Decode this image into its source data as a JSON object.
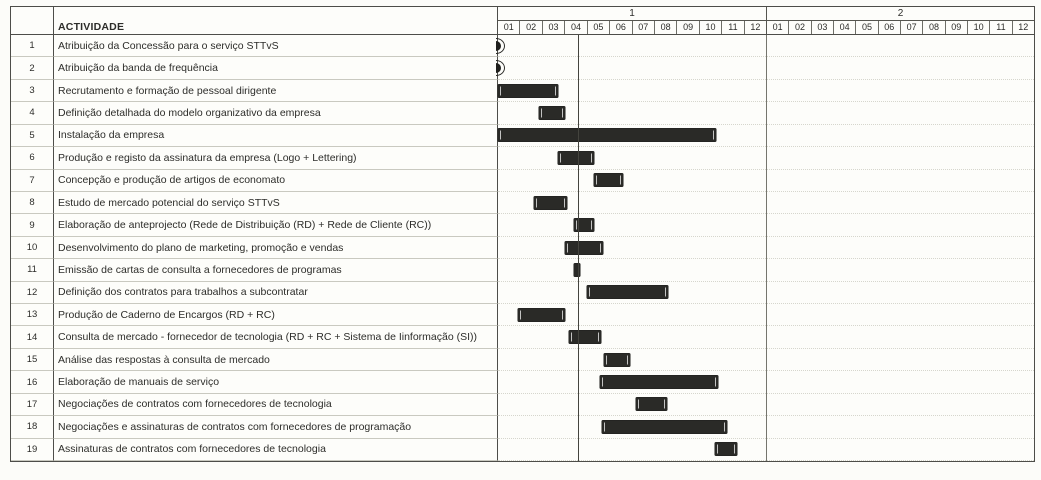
{
  "header": {
    "activity_label": "ACTIVIDADE"
  },
  "colors": {
    "bar": "#2a2a27",
    "border": "#4d4d49",
    "current_date_line": "#44443e"
  },
  "chart_data": {
    "type": "bar",
    "subtype": "gantt",
    "title": "",
    "x_axis": {
      "years": [
        "1",
        "2"
      ],
      "months": [
        "01",
        "02",
        "03",
        "04",
        "05",
        "06",
        "07",
        "08",
        "09",
        "10",
        "11",
        "12"
      ],
      "unit": "month",
      "range_months": [
        0,
        24
      ]
    },
    "current_date_line_month": 3.6,
    "tasks": [
      {
        "id": "1",
        "label": "Atribuição da Concessão para o serviço STTvS",
        "milestone_at": 0
      },
      {
        "id": "2",
        "label": "Atribuição da banda de frequência",
        "milestone_at": 0
      },
      {
        "id": "3",
        "label": "Recrutamento e formação de pessoal dirigente",
        "start": 0,
        "end": 2.7
      },
      {
        "id": "4",
        "label": "Definição detalhada do modelo organizativo da empresa",
        "start": 1.85,
        "end": 3.0
      },
      {
        "id": "5",
        "label": "Instalação da empresa",
        "start": 0,
        "end": 9.75
      },
      {
        "id": "6",
        "label": "Produção e registo da assinatura da empresa (Logo + Lettering)",
        "start": 2.7,
        "end": 4.3
      },
      {
        "id": "7",
        "label": "Concepção e produção de artigos de economato",
        "start": 4.3,
        "end": 5.6
      },
      {
        "id": "8",
        "label": "Estudo de mercado potencial do serviço STTvS",
        "start": 1.6,
        "end": 3.1
      },
      {
        "id": "9",
        "label": "Elaboração de anteprojecto (Rede de Distribuição (RD) + Rede de Cliente (RC))",
        "start": 3.4,
        "end": 4.3
      },
      {
        "id": "10",
        "label": "Desenvolvimento do plano de marketing, promoção e vendas",
        "start": 3.0,
        "end": 4.7
      },
      {
        "id": "11",
        "label": "Emissão de cartas de consulta a fornecedores de programas",
        "start": 3.4,
        "end": 3.65
      },
      {
        "id": "12",
        "label": "Definição dos contratos para trabalhos a subcontratar",
        "start": 4.0,
        "end": 7.6
      },
      {
        "id": "13",
        "label": "Produção de Caderno de Encargos  (RD + RC)",
        "start": 0.9,
        "end": 3.0
      },
      {
        "id": "14",
        "label": "Consulta de mercado - fornecedor de tecnologia (RD + RC + Sistema de Iinformação (SI))",
        "start": 3.2,
        "end": 4.6
      },
      {
        "id": "15",
        "label": "Análise das respostas à consulta de mercado",
        "start": 4.75,
        "end": 5.9
      },
      {
        "id": "16",
        "label": "Elaboração de manuais de serviço",
        "start": 4.55,
        "end": 9.85
      },
      {
        "id": "17",
        "label": "Negociações de contratos com fornecedores de tecnologia",
        "start": 6.2,
        "end": 7.55
      },
      {
        "id": "18",
        "label": "Negociações e assinaturas de contratos com fornecedores de programação",
        "start": 4.65,
        "end": 10.25
      },
      {
        "id": "19",
        "label": "Assinaturas de contratos com fornecedores de tecnologia",
        "start": 9.7,
        "end": 10.7
      }
    ]
  }
}
